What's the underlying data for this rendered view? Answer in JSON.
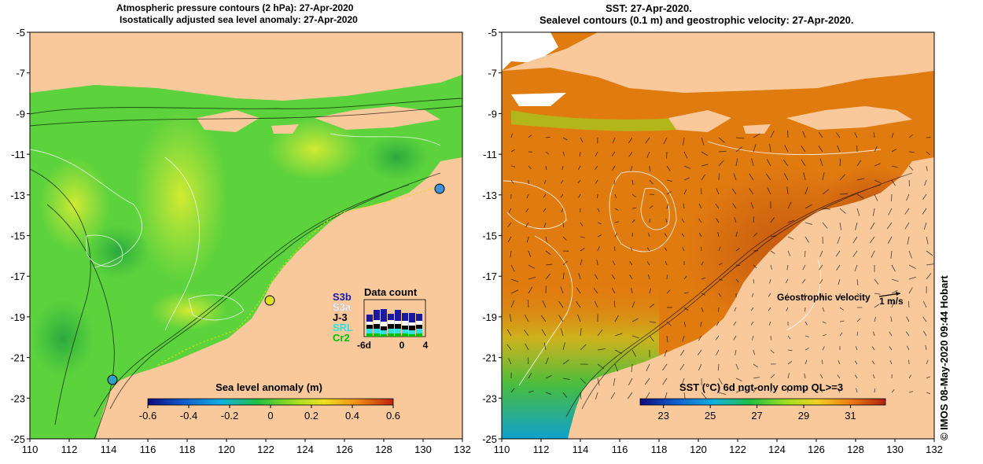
{
  "left_panel": {
    "title_line1": "Atmospheric pressure contours (2 hPa): 27-Apr-2020",
    "title_line2": "Isostatically adjusted sea level anomaly: 27-Apr-2020",
    "colorbar": {
      "label": "Sea level anomaly (m)",
      "ticks": [
        "-0.6",
        "-0.4",
        "-0.2",
        "0",
        "0.2",
        "0.4",
        "0.6"
      ],
      "range": [
        -0.6,
        0.6
      ]
    },
    "data_count": {
      "title": "Data count",
      "sources": [
        {
          "label": "S3b",
          "color": "#1a1aa0"
        },
        {
          "label": "S3a",
          "color": "#ffffff"
        },
        {
          "label": "J-3",
          "color": "#000000"
        },
        {
          "label": "SRL",
          "color": "#33e0e0"
        },
        {
          "label": "Cr2",
          "color": "#00c000"
        }
      ],
      "ticks": [
        "-6d",
        "0",
        "4"
      ]
    }
  },
  "right_panel": {
    "title_line1": "SST: 27-Apr-2020.",
    "title_line2": "Sealevel contours (0.1 m) and geostrophic velocity: 27-Apr-2020.",
    "colorbar": {
      "label": "SST (°C) 6d ngt-only comp QL>=3",
      "ticks": [
        "23",
        "25",
        "27",
        "29",
        "31"
      ],
      "range": [
        22,
        32.5
      ]
    },
    "velocity_legend": {
      "label": "Geostrophic velocity",
      "scale": "1 m/s"
    }
  },
  "axes": {
    "x_ticks": [
      "110",
      "112",
      "114",
      "116",
      "118",
      "120",
      "122",
      "124",
      "126",
      "128",
      "130",
      "132"
    ],
    "y_ticks": [
      "-5",
      "-7",
      "-9",
      "-11",
      "-13",
      "-15",
      "-17",
      "-19",
      "-21",
      "-23",
      "-25"
    ],
    "lon_range": [
      110,
      132
    ],
    "lat_range": [
      -25,
      -5
    ]
  },
  "credit": "© IMOS 08-May-2020 09:44 Hobart",
  "colors": {
    "land": "#f9c99c",
    "sla_base": "#5cd23c",
    "sst_base": "#e07b10"
  }
}
